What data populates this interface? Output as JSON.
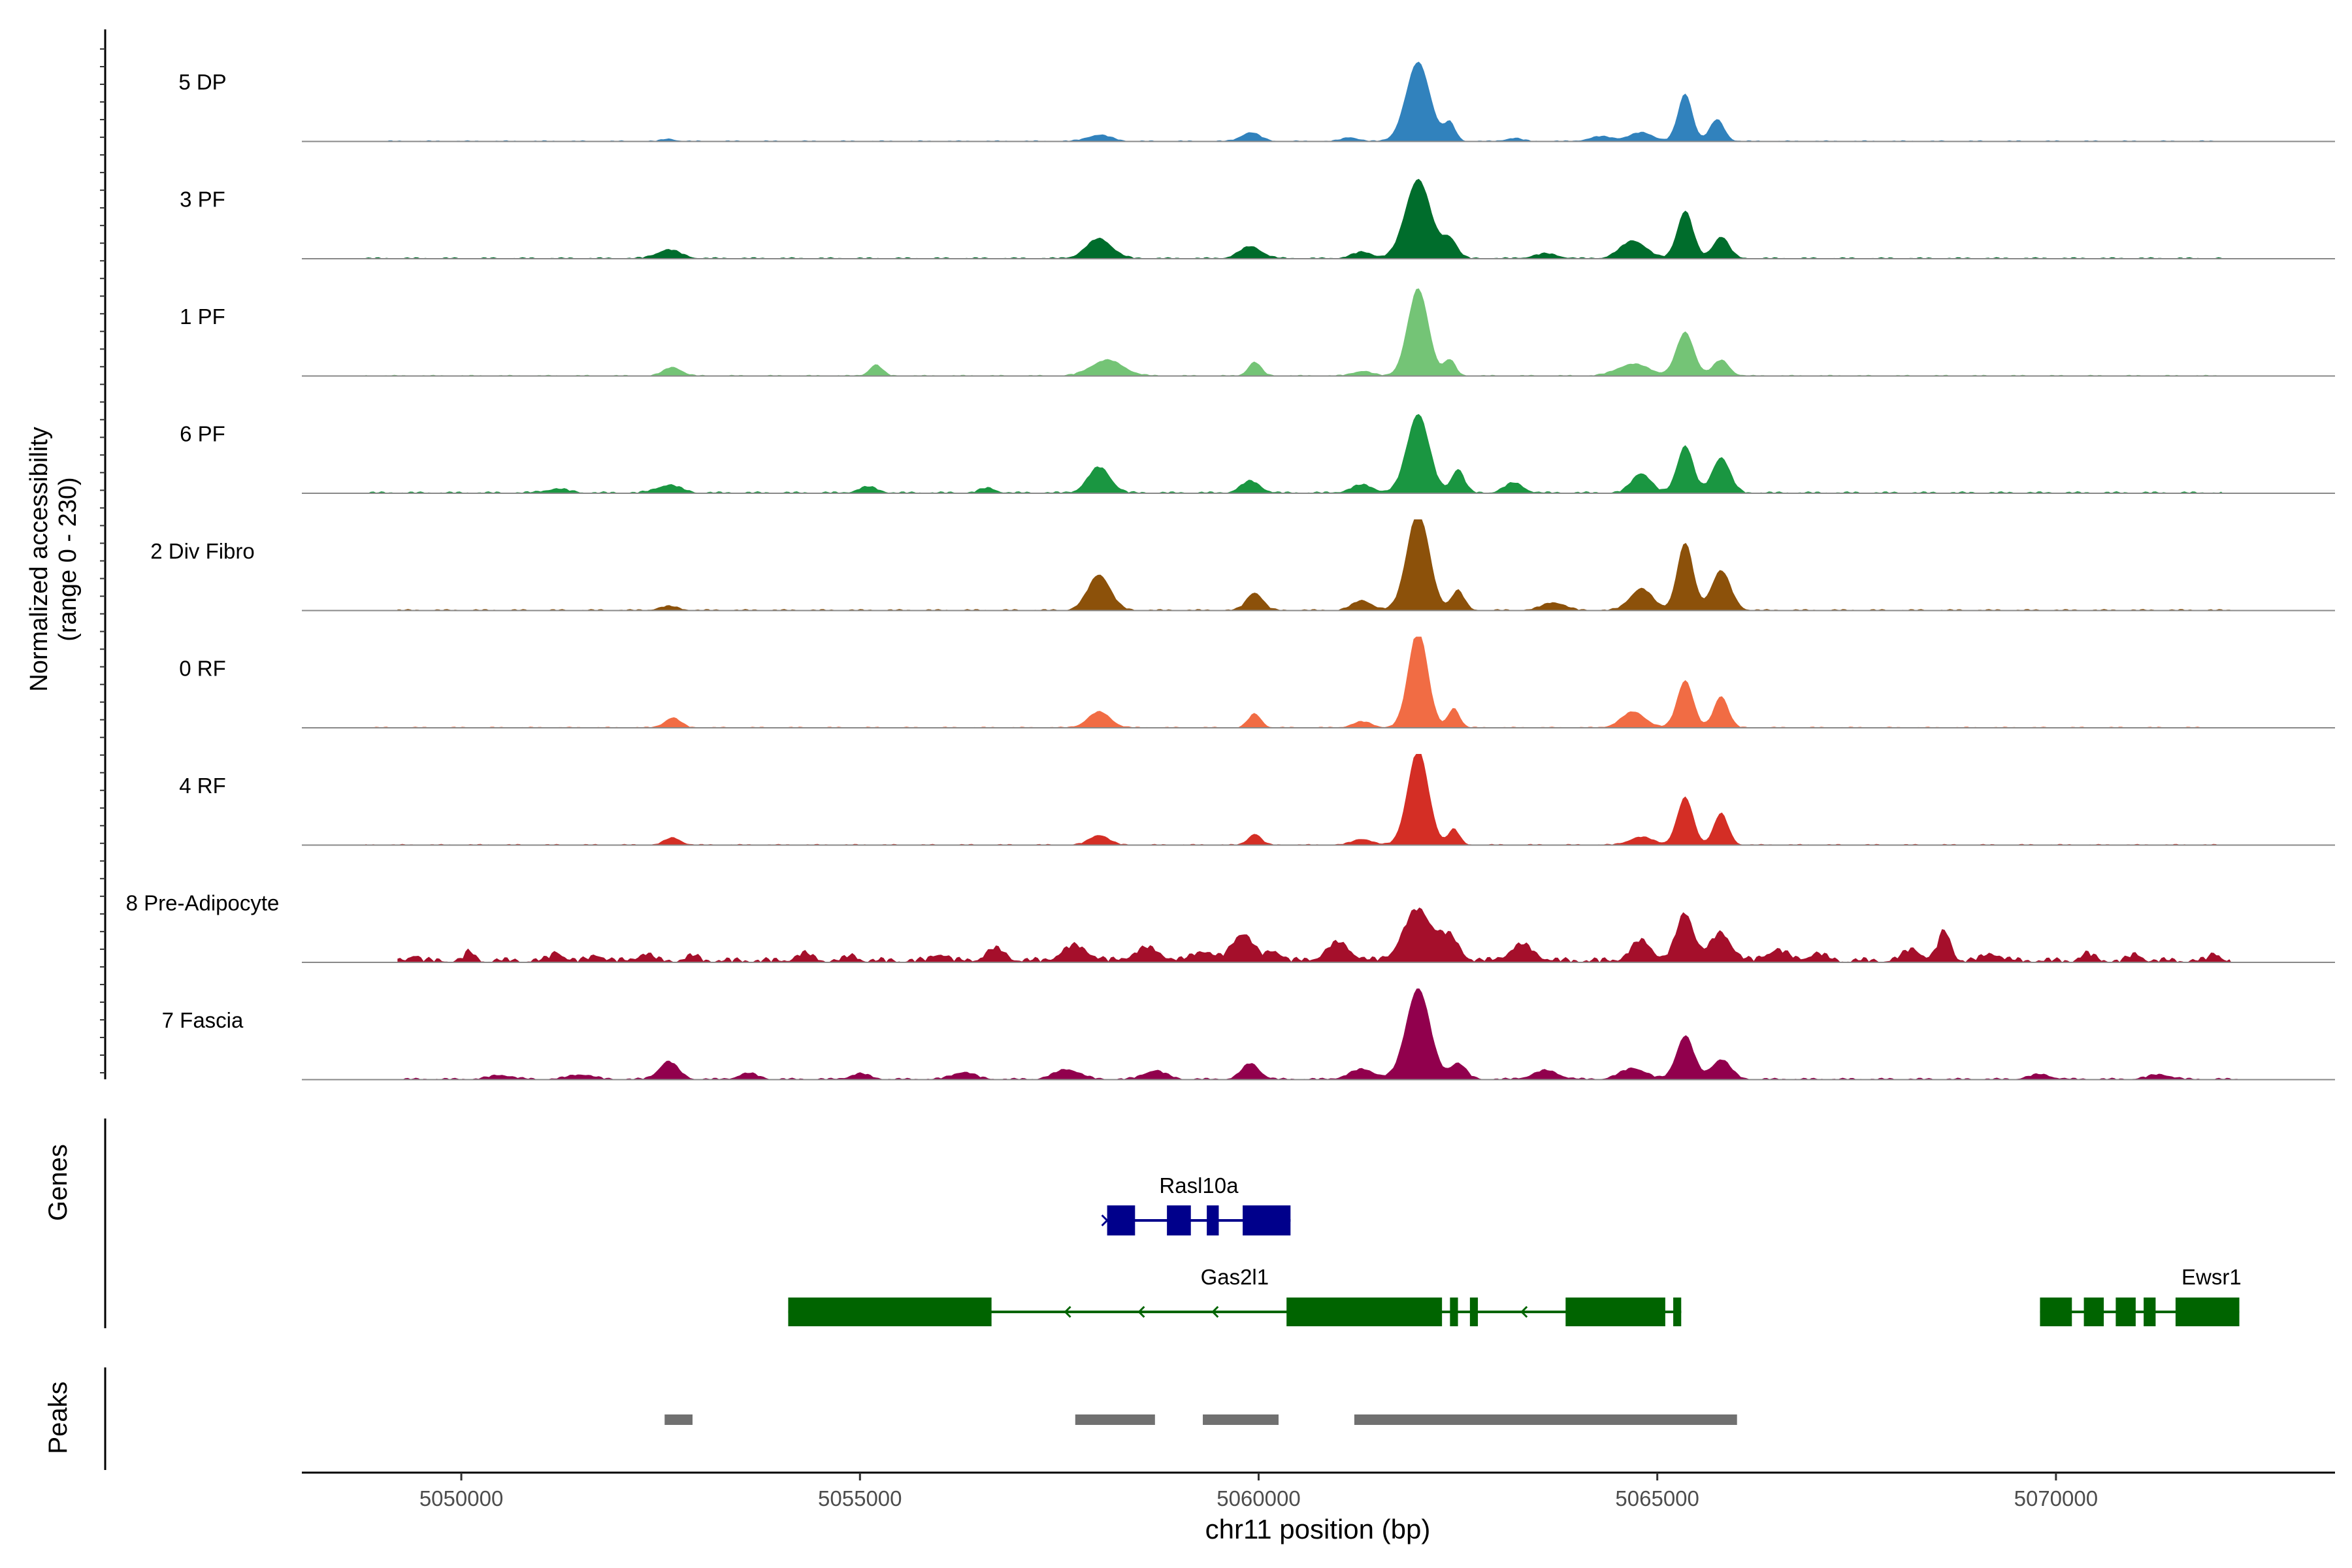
{
  "chart_data": {
    "type": "area",
    "title": "",
    "xlabel": "chr11 position (bp)",
    "ylabel_line1": "Normalized accessibility",
    "ylabel_line2": "(range 0 - 230)",
    "xlim": [
      5048000,
      5073500
    ],
    "ylim": [
      0,
      230
    ],
    "x_ticks": [
      {
        "value": 5050000,
        "label": "5050000"
      },
      {
        "value": 5055000,
        "label": "5055000"
      },
      {
        "value": 5060000,
        "label": "5060000"
      },
      {
        "value": 5065000,
        "label": "5065000"
      },
      {
        "value": 5070000,
        "label": "5070000"
      }
    ],
    "series": [
      {
        "name": "5 DP",
        "color": "#3182BD",
        "noise": 3,
        "extent": [
          5048800,
          5072100
        ],
        "peaks": [
          [
            5052600,
            6,
            80
          ],
          [
            5058000,
            16,
            150
          ],
          [
            5059900,
            22,
            120
          ],
          [
            5061150,
            10,
            100
          ],
          [
            5062000,
            200,
            150
          ],
          [
            5062400,
            45,
            70
          ],
          [
            5063200,
            8,
            100
          ],
          [
            5064300,
            12,
            150
          ],
          [
            5064800,
            22,
            150
          ],
          [
            5065350,
            120,
            90
          ],
          [
            5065750,
            55,
            90
          ]
        ]
      },
      {
        "name": "3 PF",
        "color": "#006D2C",
        "noise": 4,
        "extent": [
          5048800,
          5072100
        ],
        "peaks": [
          [
            5052600,
            22,
            150
          ],
          [
            5058000,
            50,
            160
          ],
          [
            5059900,
            30,
            140
          ],
          [
            5061300,
            16,
            130
          ],
          [
            5062000,
            200,
            160
          ],
          [
            5062400,
            48,
            90
          ],
          [
            5063600,
            12,
            150
          ],
          [
            5064700,
            45,
            160
          ],
          [
            5065350,
            120,
            100
          ],
          [
            5065800,
            55,
            100
          ]
        ]
      },
      {
        "name": "1 PF",
        "color": "#74C476",
        "noise": 3,
        "extent": [
          5048800,
          5072100
        ],
        "peaks": [
          [
            5052650,
            22,
            110
          ],
          [
            5055200,
            28,
            80
          ],
          [
            5058100,
            40,
            200
          ],
          [
            5059950,
            35,
            80
          ],
          [
            5061300,
            12,
            120
          ],
          [
            5062000,
            220,
            130
          ],
          [
            5062400,
            40,
            70
          ],
          [
            5064700,
            30,
            200
          ],
          [
            5065350,
            110,
            110
          ],
          [
            5065800,
            40,
            100
          ]
        ]
      },
      {
        "name": "6 PF",
        "color": "#1A9641",
        "noise": 5,
        "extent": [
          5048800,
          5072100
        ],
        "peaks": [
          [
            5051200,
            10,
            150
          ],
          [
            5052600,
            20,
            150
          ],
          [
            5055100,
            15,
            120
          ],
          [
            5056600,
            12,
            100
          ],
          [
            5058000,
            65,
            140
          ],
          [
            5059900,
            30,
            120
          ],
          [
            5061300,
            20,
            140
          ],
          [
            5062000,
            200,
            140
          ],
          [
            5062500,
            60,
            80
          ],
          [
            5063200,
            25,
            120
          ],
          [
            5064800,
            50,
            120
          ],
          [
            5065350,
            120,
            100
          ],
          [
            5065800,
            90,
            110
          ]
        ]
      },
      {
        "name": "2 Div Fibro",
        "color": "#8C510A",
        "noise": 4,
        "extent": [
          5049200,
          5072300
        ],
        "peaks": [
          [
            5052600,
            10,
            120
          ],
          [
            5058000,
            90,
            140
          ],
          [
            5059950,
            45,
            100
          ],
          [
            5061300,
            25,
            120
          ],
          [
            5062000,
            250,
            140
          ],
          [
            5062500,
            50,
            80
          ],
          [
            5063700,
            20,
            140
          ],
          [
            5064800,
            55,
            140
          ],
          [
            5065350,
            170,
            100
          ],
          [
            5065800,
            100,
            120
          ]
        ]
      },
      {
        "name": "0 RF",
        "color": "#F16C44",
        "noise": 3,
        "extent": [
          5048800,
          5072100
        ],
        "peaks": [
          [
            5052650,
            25,
            100
          ],
          [
            5058000,
            40,
            140
          ],
          [
            5059950,
            35,
            80
          ],
          [
            5061300,
            15,
            120
          ],
          [
            5062000,
            250,
            120
          ],
          [
            5062450,
            50,
            70
          ],
          [
            5064700,
            40,
            150
          ],
          [
            5065350,
            120,
            100
          ],
          [
            5065800,
            80,
            90
          ]
        ]
      },
      {
        "name": "4 RF",
        "color": "#D42E25",
        "noise": 3,
        "extent": [
          5048800,
          5072100
        ],
        "peaks": [
          [
            5052650,
            18,
            100
          ],
          [
            5058000,
            25,
            120
          ],
          [
            5059950,
            28,
            80
          ],
          [
            5061300,
            15,
            120
          ],
          [
            5062000,
            240,
            130
          ],
          [
            5062450,
            40,
            70
          ],
          [
            5064800,
            20,
            150
          ],
          [
            5065350,
            120,
            100
          ],
          [
            5065800,
            80,
            90
          ]
        ]
      },
      {
        "name": "8 Pre-Adipocyte",
        "color": "#A50F2B",
        "noise": 14,
        "extent": [
          5049200,
          5072200
        ],
        "peaks": [
          [
            5049400,
            15,
            60
          ],
          [
            5050100,
            22,
            60
          ],
          [
            5051200,
            22,
            80
          ],
          [
            5051700,
            15,
            80
          ],
          [
            5052300,
            18,
            90
          ],
          [
            5052900,
            12,
            80
          ],
          [
            5054300,
            18,
            100
          ],
          [
            5054900,
            12,
            80
          ],
          [
            5056000,
            18,
            90
          ],
          [
            5056700,
            30,
            120
          ],
          [
            5057700,
            38,
            160
          ],
          [
            5058600,
            32,
            160
          ],
          [
            5059300,
            25,
            120
          ],
          [
            5059800,
            70,
            130
          ],
          [
            5060200,
            25,
            90
          ],
          [
            5061000,
            45,
            150
          ],
          [
            5062000,
            130,
            180
          ],
          [
            5062400,
            55,
            120
          ],
          [
            5063300,
            40,
            150
          ],
          [
            5064800,
            50,
            130
          ],
          [
            5065350,
            120,
            110
          ],
          [
            5065800,
            70,
            130
          ],
          [
            5066500,
            28,
            130
          ],
          [
            5067000,
            18,
            110
          ],
          [
            5068200,
            30,
            110
          ],
          [
            5068600,
            75,
            80
          ],
          [
            5069200,
            18,
            110
          ],
          [
            5070400,
            18,
            80
          ],
          [
            5071000,
            15,
            80
          ],
          [
            5072000,
            18,
            70
          ]
        ]
      },
      {
        "name": "7 Fascia",
        "color": "#91004D",
        "noise": 5,
        "extent": [
          5049200,
          5072300
        ],
        "peaks": [
          [
            5050500,
            10,
            150
          ],
          [
            5051500,
            12,
            150
          ],
          [
            5052600,
            45,
            120
          ],
          [
            5053600,
            15,
            120
          ],
          [
            5055000,
            14,
            120
          ],
          [
            5056300,
            18,
            140
          ],
          [
            5057600,
            25,
            160
          ],
          [
            5058700,
            22,
            140
          ],
          [
            5059900,
            40,
            110
          ],
          [
            5061300,
            25,
            160
          ],
          [
            5062000,
            230,
            150
          ],
          [
            5062500,
            40,
            100
          ],
          [
            5063600,
            22,
            160
          ],
          [
            5064700,
            28,
            160
          ],
          [
            5065350,
            110,
            110
          ],
          [
            5065800,
            50,
            120
          ],
          [
            5069800,
            12,
            140
          ],
          [
            5071300,
            12,
            140
          ]
        ]
      }
    ],
    "genes_track_label": "Genes",
    "peaks_track_label": "Peaks",
    "genes": [
      {
        "name": "Rasl10a",
        "color": "#00008B",
        "row": 1,
        "start": 5058100,
        "end": 5060400,
        "strand": "+",
        "exons": [
          [
            5058100,
            5058450
          ],
          [
            5058850,
            5059150
          ],
          [
            5059350,
            5059500
          ],
          [
            5059800,
            5060400
          ]
        ]
      },
      {
        "name": "Gas2l1",
        "color": "#006400",
        "row": 2,
        "start": 5054100,
        "end": 5065300,
        "strand": "-",
        "exons": [
          [
            5054100,
            5056650
          ],
          [
            5060350,
            5062300
          ],
          [
            5062400,
            5062500
          ],
          [
            5062650,
            5062750
          ],
          [
            5063850,
            5065100
          ],
          [
            5065200,
            5065300
          ]
        ]
      },
      {
        "name": "Ewsr1",
        "color": "#006400",
        "row": 2,
        "start": 5069800,
        "end": 5072300,
        "strand": "+",
        "exons": [
          [
            5069800,
            5070200
          ],
          [
            5070350,
            5070600
          ],
          [
            5070750,
            5071000
          ],
          [
            5071100,
            5071250
          ],
          [
            5071500,
            5072300
          ]
        ]
      }
    ],
    "peak_regions": [
      [
        5052550,
        5052900
      ],
      [
        5057700,
        5058700
      ],
      [
        5059300,
        5060250
      ],
      [
        5061200,
        5066000
      ]
    ],
    "peak_color": "#707070"
  }
}
